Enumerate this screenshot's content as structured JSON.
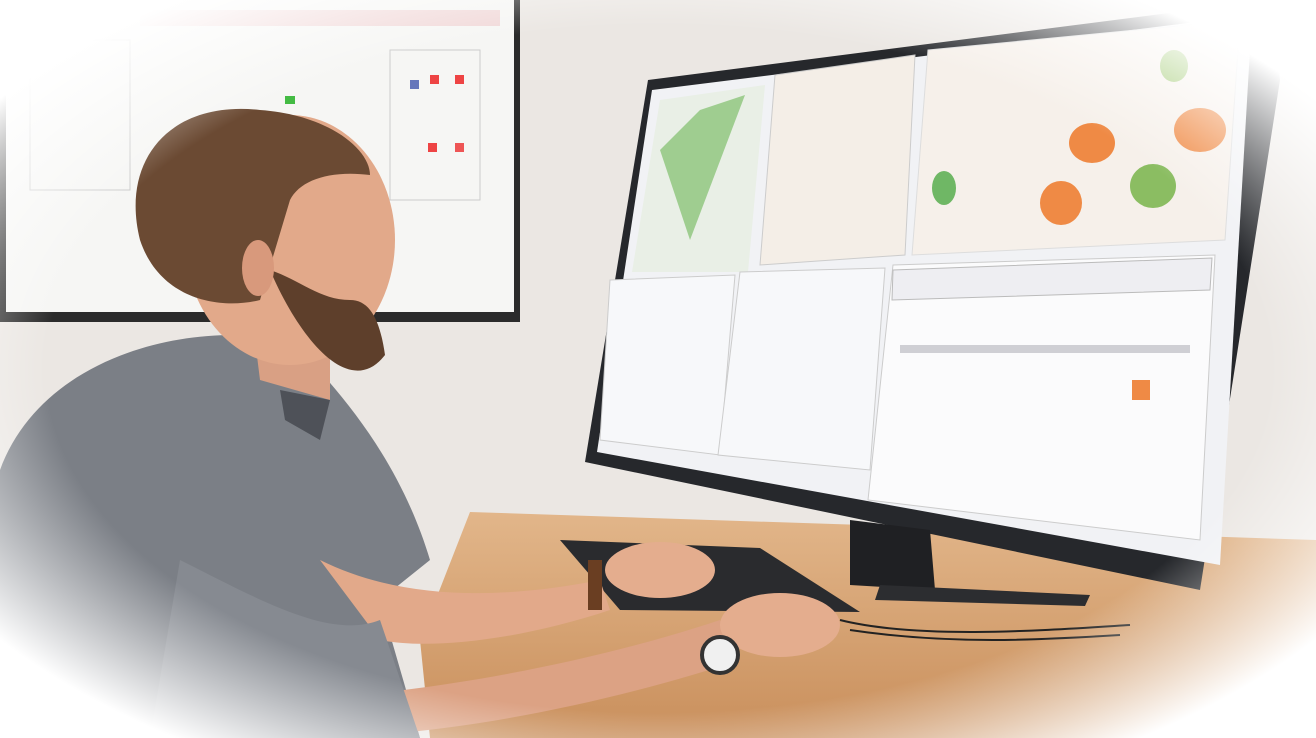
{
  "scene": {
    "colors": {
      "wall": "#e9e5e1",
      "desk": "#d9a877",
      "shirt": "#7b7f86",
      "skin": "#e2a98a",
      "hair": "#6b4a33",
      "monitor_bezel": "#2a2c30",
      "screen": "#f2f3f6",
      "accent_orange": "#ef8a45",
      "accent_green": "#6fb765"
    },
    "objects": [
      "whiteboard",
      "man",
      "monitor",
      "keyboard",
      "desk",
      "wristwatch",
      "cables"
    ]
  }
}
